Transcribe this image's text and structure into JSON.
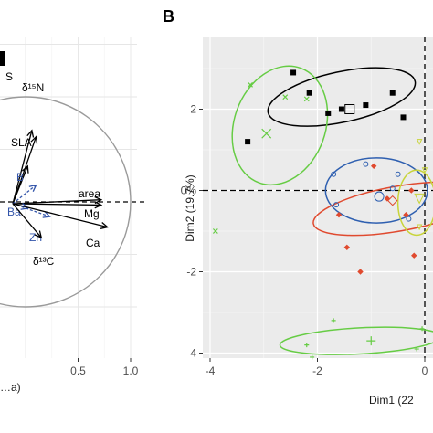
{
  "chart_data": [
    {
      "panel": "A",
      "type": "scatter",
      "xlim": [
        -0.05,
        1.05
      ],
      "ylim": [
        -0.8,
        0.8
      ],
      "x_ticks": [
        {
          "label": "0.5",
          "value": 0.5
        },
        {
          "label": "1.0",
          "value": 1.0
        }
      ],
      "xlabel": "…a)",
      "ref_line": {
        "y": 0,
        "style": "dashed"
      },
      "unit_circle": true,
      "arrows": [
        {
          "label": "S",
          "x": 0.06,
          "y": 0.68,
          "color": "#000000"
        },
        {
          "label": "δ¹⁵N",
          "x": 0.1,
          "y": 0.62,
          "color": "#000000"
        },
        {
          "label": "SLA",
          "x": 0.02,
          "y": 0.34,
          "color": "#000000"
        },
        {
          "label": "B",
          "x": 0.1,
          "y": 0.16,
          "color": "#3355aa"
        },
        {
          "label": "area",
          "x": 0.72,
          "y": 0.02,
          "color": "#000000"
        },
        {
          "label": "Mg",
          "x": 0.72,
          "y": -0.03,
          "color": "#000000"
        },
        {
          "label": "Ba",
          "x": 0.02,
          "y": -0.06,
          "color": "#3355aa"
        },
        {
          "label": "Zn",
          "x": 0.23,
          "y": -0.14,
          "color": "#3355aa"
        },
        {
          "label": "Ca",
          "x": 0.78,
          "y": -0.24,
          "color": "#000000"
        },
        {
          "label": "δ¹³C",
          "x": 0.15,
          "y": -0.34,
          "color": "#000000"
        }
      ]
    },
    {
      "panel": "B",
      "type": "scatter",
      "xlim": [
        -4.15,
        0.1
      ],
      "ylim": [
        -4.5,
        3.4
      ],
      "x_ticks": [
        -4,
        -2,
        0
      ],
      "y_ticks": [
        2,
        0,
        -2,
        -4
      ],
      "y_tick_labels": [
        "2",
        "0%",
        "-2",
        "-4"
      ],
      "x_tick_labels": [
        "-4",
        "-2",
        "0"
      ],
      "xlabel": "Dim1 (22",
      "ylabel": "Dim2 (19.7%)",
      "ref_lines": {
        "x": 0,
        "y": 0,
        "style": "dashed"
      },
      "groups": [
        {
          "color": "#000000",
          "ellipse": {
            "cx": -1.55,
            "cy": 2.3,
            "rx": 1.4,
            "ry": 0.62,
            "angle": -12
          },
          "centroid": [
            -1.4,
            2.0
          ],
          "points": [
            [
              -2.45,
              2.9
            ],
            [
              -2.15,
              2.4
            ],
            [
              -1.1,
              2.1
            ],
            [
              -0.6,
              2.4
            ],
            [
              -1.8,
              1.9
            ],
            [
              -3.3,
              1.2
            ],
            [
              -1.55,
              2.0
            ],
            [
              -0.4,
              1.8
            ]
          ]
        },
        {
          "color": "#66cc44",
          "ellipse": {
            "cx": -2.7,
            "cy": 1.6,
            "rx": 0.85,
            "ry": 1.5,
            "angle": 20
          },
          "centroid": [
            -2.95,
            1.4
          ],
          "points": [
            [
              -3.25,
              2.6
            ],
            [
              -2.6,
              2.3
            ],
            [
              -2.2,
              2.25
            ],
            [
              -3.9,
              -1.0
            ]
          ]
        },
        {
          "color": "#66cc44",
          "ellipse": {
            "cx": -1.2,
            "cy": -3.7,
            "rx": 1.5,
            "ry": 0.32,
            "angle": -3
          },
          "centroid": [
            -1.0,
            -3.7
          ],
          "points": [
            [
              -1.7,
              -3.2
            ],
            [
              -2.2,
              -3.8
            ],
            [
              -2.1,
              -4.1
            ],
            [
              -0.05,
              -3.4
            ],
            [
              -0.15,
              -3.9
            ]
          ]
        },
        {
          "color": "#2e5fb0",
          "ellipse": {
            "cx": -0.9,
            "cy": 0.0,
            "rx": 0.95,
            "ry": 0.8,
            "angle": 0
          },
          "centroid": [
            -0.85,
            -0.15
          ],
          "points": [
            [
              -1.7,
              0.4
            ],
            [
              -1.1,
              0.65
            ],
            [
              -0.5,
              0.4
            ],
            [
              -0.3,
              -0.7
            ],
            [
              -1.65,
              -0.35
            ],
            [
              -0.6,
              0.05
            ]
          ]
        },
        {
          "color": "#e04a2f",
          "ellipse": {
            "cx": -0.5,
            "cy": -0.45,
            "rx": 1.6,
            "ry": 0.55,
            "angle": -10
          },
          "centroid": [
            -0.6,
            -0.25
          ],
          "points": [
            [
              -1.6,
              -0.6
            ],
            [
              -1.45,
              -1.4
            ],
            [
              -0.95,
              0.6
            ],
            [
              -0.7,
              -0.2
            ],
            [
              -0.25,
              0.0
            ],
            [
              -0.35,
              -0.6
            ],
            [
              -1.2,
              -2.0
            ],
            [
              -0.2,
              -1.6
            ]
          ]
        },
        {
          "color": "#c8d43a",
          "ellipse": {
            "cx": -0.15,
            "cy": -0.3,
            "rx": 0.35,
            "ry": 0.8,
            "angle": 0
          },
          "centroid": [
            -0.1,
            -0.2
          ],
          "points": [
            [
              -0.1,
              1.2
            ],
            [
              0.0,
              0.5
            ],
            [
              -0.1,
              -0.9
            ]
          ]
        }
      ]
    }
  ],
  "panels": {
    "a": {
      "xlabel": "…a)"
    },
    "b": {
      "label": "B"
    }
  }
}
